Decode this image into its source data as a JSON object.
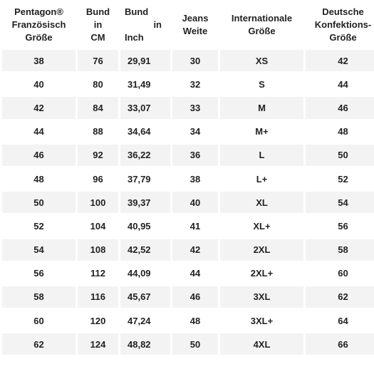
{
  "headers": {
    "col1": [
      "Pentagon®",
      "Französisch",
      "Größe"
    ],
    "col2": [
      "Bund",
      "in",
      "CM"
    ],
    "col3": [
      "Bund",
      "in",
      "Inch"
    ],
    "col4": [
      "Jeans",
      "Weite"
    ],
    "col5": [
      "Internationale",
      "Größe"
    ],
    "col6": [
      "Deutsche",
      "Konfektions-",
      "Größe"
    ]
  },
  "rows": [
    {
      "fr": "38",
      "cm": "76",
      "inch": "29,91",
      "jeans": "30",
      "intl": "XS",
      "de": "42"
    },
    {
      "fr": "40",
      "cm": "80",
      "inch": "31,49",
      "jeans": "32",
      "intl": "S",
      "de": "44"
    },
    {
      "fr": "42",
      "cm": "84",
      "inch": "33,07",
      "jeans": "33",
      "intl": "M",
      "de": "46"
    },
    {
      "fr": "44",
      "cm": "88",
      "inch": "34,64",
      "jeans": "34",
      "intl": "M+",
      "de": "48"
    },
    {
      "fr": "46",
      "cm": "92",
      "inch": "36,22",
      "jeans": "36",
      "intl": "L",
      "de": "50"
    },
    {
      "fr": "48",
      "cm": "96",
      "inch": "37,79",
      "jeans": "38",
      "intl": "L+",
      "de": "52"
    },
    {
      "fr": "50",
      "cm": "100",
      "inch": "39,37",
      "jeans": "40",
      "intl": "XL",
      "de": "54"
    },
    {
      "fr": "52",
      "cm": "104",
      "inch": "40,95",
      "jeans": "41",
      "intl": "XL+",
      "de": "56"
    },
    {
      "fr": "54",
      "cm": "108",
      "inch": "42,52",
      "jeans": "42",
      "intl": "2XL",
      "de": "58"
    },
    {
      "fr": "56",
      "cm": "112",
      "inch": "44,09",
      "jeans": "44",
      "intl": "2XL+",
      "de": "60"
    },
    {
      "fr": "58",
      "cm": "116",
      "inch": "45,67",
      "jeans": "46",
      "intl": "3XL",
      "de": "62"
    },
    {
      "fr": "60",
      "cm": "120",
      "inch": "47,24",
      "jeans": "48",
      "intl": "3XL+",
      "de": "64"
    },
    {
      "fr": "62",
      "cm": "124",
      "inch": "48,82",
      "jeans": "50",
      "intl": "4XL",
      "de": "66"
    }
  ],
  "colors": {
    "row_shaded": "#f3f3f3",
    "row_plain": "#ffffff",
    "text": "#222222"
  }
}
